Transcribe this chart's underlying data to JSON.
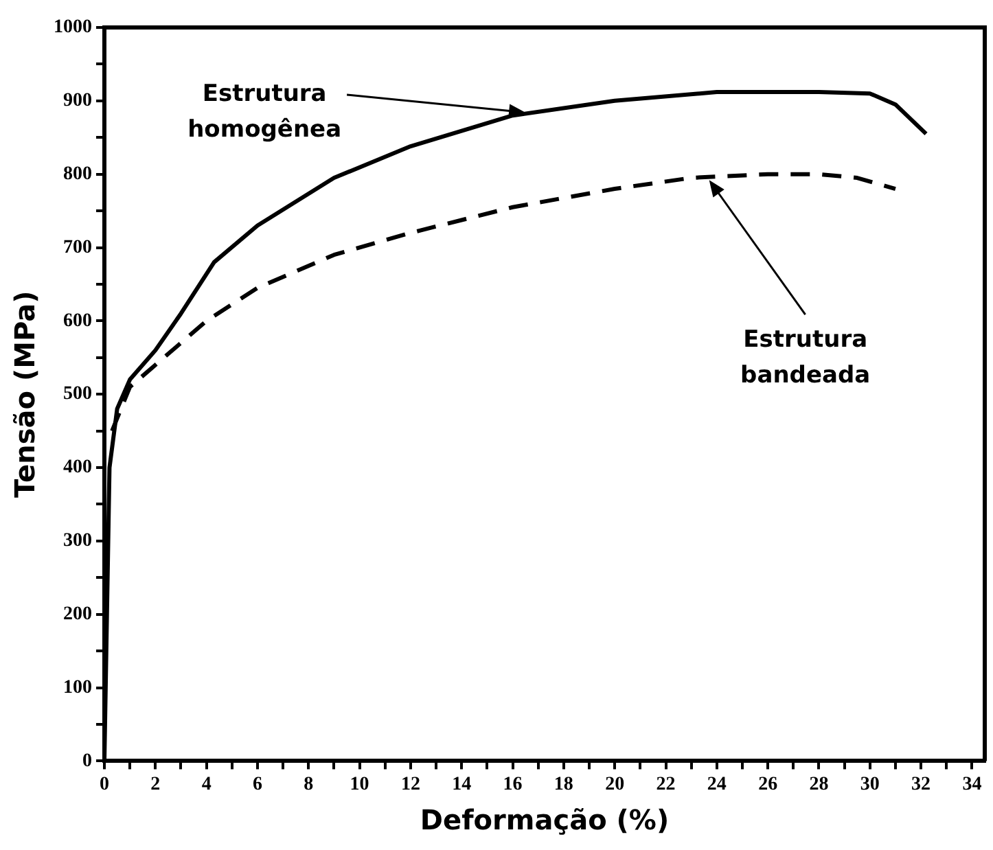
{
  "chart_data": {
    "type": "line",
    "xlabel": "Deformação (%)",
    "ylabel": "Tensão (MPa)",
    "xlim": [
      0,
      34.5
    ],
    "ylim": [
      0,
      1000
    ],
    "xticks": [
      0,
      {
        "value": 1,
        "label": null
      },
      2,
      {
        "value": 3,
        "label": null
      },
      4,
      {
        "value": 5,
        "label": null
      },
      6,
      {
        "value": 7,
        "label": null
      },
      8,
      {
        "value": 9,
        "label": null
      },
      10,
      {
        "value": 11,
        "label": null
      },
      12,
      {
        "value": 13,
        "label": null
      },
      14,
      {
        "value": 15,
        "label": null
      },
      16,
      {
        "value": 17,
        "label": null
      },
      18,
      {
        "value": 19,
        "label": null
      },
      20,
      {
        "value": 21,
        "label": null
      },
      22,
      {
        "value": 23,
        "label": null
      },
      24,
      {
        "value": 25,
        "label": null
      },
      26,
      {
        "value": 27,
        "label": null
      },
      28,
      {
        "value": 29,
        "label": null
      },
      30,
      {
        "value": 31,
        "label": null
      },
      32,
      {
        "value": 33,
        "label": null
      },
      34
    ],
    "yticks": [
      0,
      {
        "value": 50,
        "label": null
      },
      100,
      {
        "value": 150,
        "label": null
      },
      200,
      {
        "value": 250,
        "label": null
      },
      300,
      {
        "value": 350,
        "label": null
      },
      400,
      {
        "value": 450,
        "label": null
      },
      500,
      {
        "value": 550,
        "label": null
      },
      600,
      {
        "value": 650,
        "label": null
      },
      700,
      {
        "value": 750,
        "label": null
      },
      800,
      {
        "value": 850,
        "label": null
      },
      900,
      {
        "value": 950,
        "label": null
      },
      1000
    ],
    "grid": false,
    "legend": false,
    "marker": "none",
    "series": [
      {
        "color": "#000000",
        "line_style": "solid",
        "x": [
          0,
          0.2,
          0.5,
          1,
          2,
          3,
          4.3,
          6,
          9,
          12,
          16,
          20,
          24,
          28,
          30,
          31,
          32.2
        ],
        "values": [
          0,
          400,
          480,
          520,
          560,
          610,
          680,
          730,
          795,
          838,
          880,
          900,
          912,
          912,
          910,
          895,
          855
        ]
      },
      {
        "color": "#000000",
        "line_style": "dashed",
        "x": [
          0.3,
          1,
          2,
          4,
          6,
          9,
          12,
          16,
          20,
          23,
          26,
          28,
          29.5,
          31
        ],
        "values": [
          450,
          510,
          540,
          600,
          645,
          690,
          720,
          755,
          780,
          795,
          800,
          800,
          795,
          780
        ]
      }
    ],
    "annotations": [
      {
        "text": "Estrutura\nhomogênea",
        "x": 16.5,
        "y": 884
      },
      {
        "text": "Estrutura\nbandeada",
        "x": 23.7,
        "y": 792
      }
    ]
  }
}
